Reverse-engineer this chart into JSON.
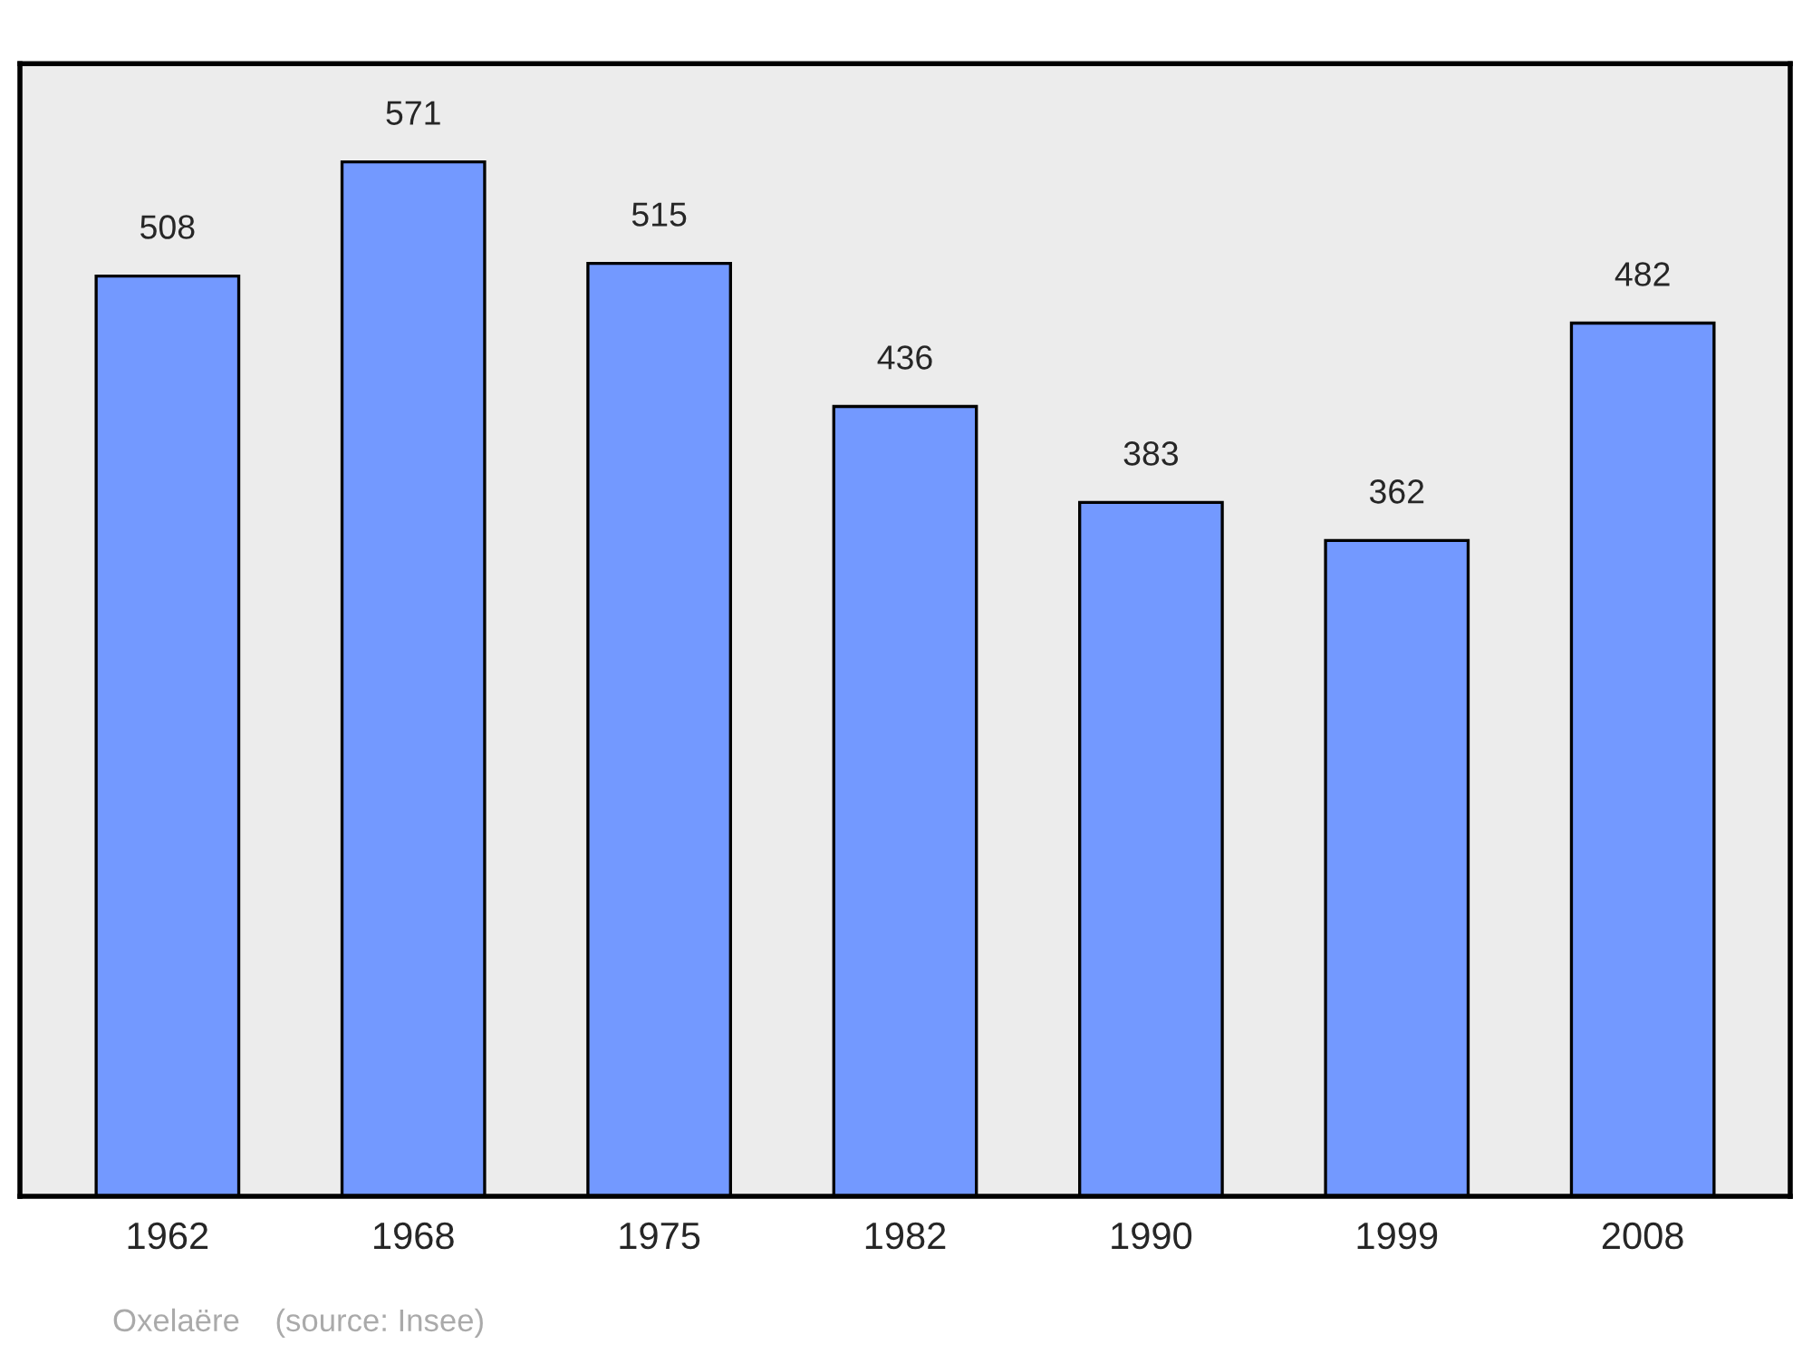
{
  "chart_data": {
    "type": "bar",
    "categories": [
      "1962",
      "1968",
      "1975",
      "1982",
      "1990",
      "1999",
      "2008"
    ],
    "values": [
      508,
      571,
      515,
      436,
      383,
      362,
      482
    ],
    "color": "#7399ff",
    "data_labels": true,
    "grid": false,
    "annotations": [
      "Oxelaëre    (source: Insee)"
    ]
  }
}
